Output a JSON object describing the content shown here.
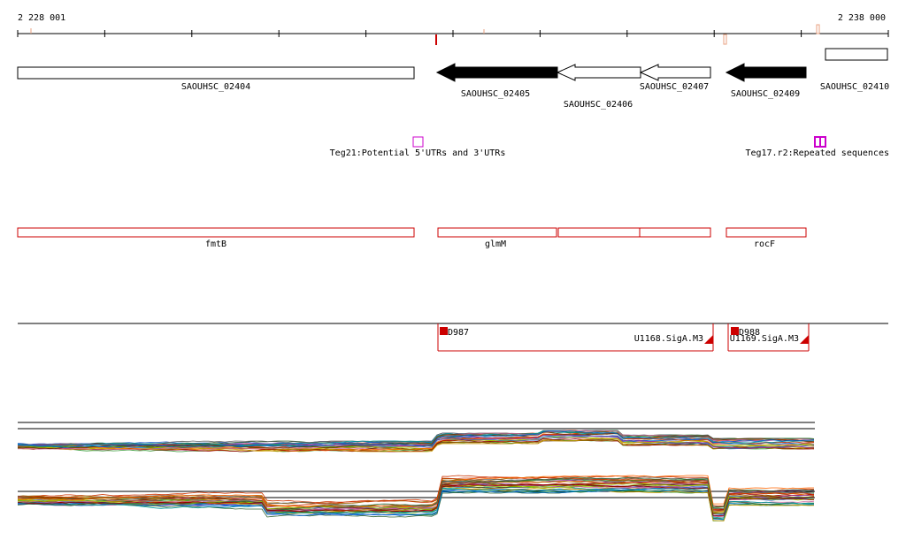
{
  "ruler": {
    "start_label": "2 228 001",
    "end_label": "2 238 000",
    "start": 2228001,
    "end": 2238000
  },
  "colors": {
    "black": "#000000",
    "red": "#cc0000",
    "magenta": "#cc00cc",
    "salmon": "#e8a080"
  },
  "genes": [
    {
      "id": "SAOUHSC_02404",
      "label": "SAOUHSC_02404",
      "strand": "+",
      "fill": "white"
    },
    {
      "id": "SAOUHSC_02405",
      "label": "SAOUHSC_02405",
      "strand": "-",
      "fill": "black"
    },
    {
      "id": "SAOUHSC_02406",
      "label": "SAOUHSC_02406",
      "strand": "-",
      "fill": "white"
    },
    {
      "id": "SAOUHSC_02407",
      "label": "SAOUHSC_02407",
      "strand": "-",
      "fill": "white"
    },
    {
      "id": "SAOUHSC_02409",
      "label": "SAOUHSC_02409",
      "strand": "-",
      "fill": "black"
    },
    {
      "id": "SAOUHSC_02410",
      "label": "SAOUHSC_02410",
      "strand": "+",
      "fill": "white"
    }
  ],
  "regulatory": [
    {
      "label": "Teg21:Potential 5'UTRs and 3'UTRs"
    },
    {
      "label": "Teg17.r2:Repeated sequences"
    }
  ],
  "operons": [
    {
      "label": "fmtB"
    },
    {
      "label": "glmM"
    },
    {
      "label": "rocF"
    }
  ],
  "transcripts": [
    {
      "promoter": "D987",
      "name": "U1168.SigA.M3"
    },
    {
      "promoter": "D988",
      "name": "U1169.SigA.M3"
    }
  ]
}
